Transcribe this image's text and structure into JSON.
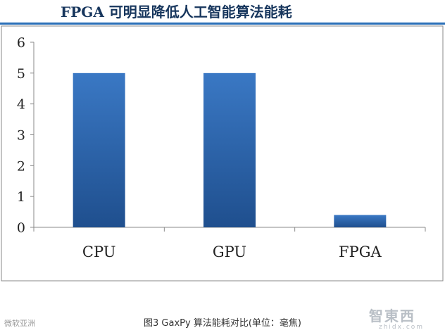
{
  "header": {
    "title": "FPGA 可明显降低人工智能算法能耗"
  },
  "caption": "图3 GaxPy 算法能耗对比(单位：毫焦)",
  "watermarks": {
    "left": "微软亚洲",
    "right_main": "智東西",
    "right_sub": "zhidx.com"
  },
  "colors": {
    "bar": "#3a78c4",
    "bar_dark": "#1f4f8e",
    "title": "#17365d",
    "rule": "#2a6fb7"
  },
  "chart_data": {
    "type": "bar",
    "categories": [
      "CPU",
      "GPU",
      "FPGA"
    ],
    "values": [
      5,
      5,
      0.4
    ],
    "title": "",
    "xlabel": "",
    "ylabel": "",
    "ylim": [
      0,
      6
    ],
    "yticks": [
      0,
      1,
      2,
      3,
      4,
      5,
      6
    ],
    "grid": false,
    "legend": "none"
  }
}
